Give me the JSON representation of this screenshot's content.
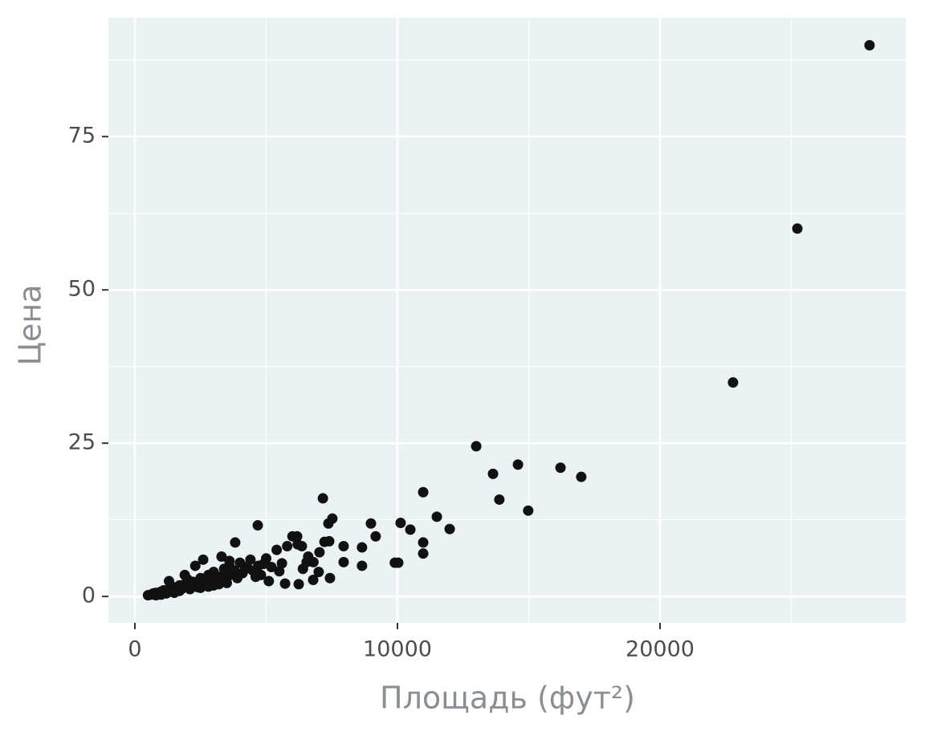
{
  "chart_data": {
    "type": "scatter",
    "x_label": "Площадь (фут²)",
    "y_label": "Цена",
    "color": "#111111",
    "panel_color": "#eaf2f6",
    "grid": true,
    "xlim": [
      -1009,
      29358
    ],
    "ylim": [
      -4.3,
      94.4
    ],
    "xticks": [
      0,
      10000,
      20000
    ],
    "yticks": [
      0,
      25,
      50,
      75
    ],
    "x": [
      27980,
      25230,
      22780,
      13000,
      13640,
      14590,
      13880,
      14980,
      16210,
      17000,
      10980,
      11500,
      11990,
      10120,
      10490,
      10980,
      10980,
      9900,
      10030,
      8990,
      9170,
      8650,
      8650,
      7950,
      7950,
      7160,
      7520,
      7370,
      4680,
      3820,
      6180,
      6360,
      7220,
      7030,
      6540,
      7430,
      6790,
      6240,
      5720,
      500,
      600,
      700,
      800,
      900,
      1000,
      1100,
      1200,
      1300,
      1400,
      1500,
      1600,
      1700,
      1800,
      1900,
      2000,
      2200,
      2300,
      2500,
      2600,
      2800,
      2900,
      3000,
      3100,
      3200,
      3400,
      3500,
      3600,
      3700,
      3800,
      4000,
      4100,
      4200,
      4400,
      4500,
      4700,
      4800,
      5000,
      5200,
      5400,
      5600,
      5800,
      6000,
      6200,
      6400,
      6600,
      6800,
      7000,
      7400,
      1300,
      2300,
      2600,
      1900,
      3300,
      3600,
      2500,
      1500,
      3000,
      2100,
      2700,
      3900,
      4300,
      1000,
      1700,
      2400,
      3500,
      4600,
      5100,
      5500,
      4900,
      2000,
      1200,
      800,
      3200,
      2800
    ],
    "values": [
      89.9,
      60,
      34.9,
      24.5,
      20,
      21.5,
      15.8,
      14,
      21,
      19.5,
      17,
      13,
      11,
      12,
      10.9,
      8.8,
      7,
      5.5,
      5.5,
      11.9,
      9.8,
      8,
      5,
      8.2,
      5.6,
      16,
      12.7,
      11.9,
      11.6,
      8.8,
      9.8,
      8.2,
      8.9,
      7.2,
      5.6,
      3,
      2.7,
      2,
      2.1,
      0.2,
      0.3,
      0.5,
      0.6,
      0.4,
      0.8,
      1,
      0.7,
      1.2,
      0.9,
      1.5,
      1.1,
      1.8,
      1.3,
      2,
      1.6,
      2.4,
      1.8,
      3,
      2.2,
      3.5,
      2.5,
      4,
      2.8,
      3.2,
      4.5,
      3,
      5,
      3.6,
      4.2,
      5.5,
      3.8,
      4.8,
      6,
      4.2,
      5,
      3.5,
      6.2,
      4.8,
      7.6,
      5.4,
      8.2,
      9.8,
      8.5,
      4.5,
      6.5,
      5.6,
      4,
      9,
      2.5,
      5,
      6,
      3.5,
      6.5,
      5.8,
      1.4,
      0.6,
      1.8,
      1.2,
      2,
      3,
      4.6,
      0.3,
      0.9,
      1.5,
      2.2,
      3.2,
      2.5,
      4.1,
      5.3,
      2.8,
      0.5,
      0.2,
      2,
      1.6
    ]
  }
}
